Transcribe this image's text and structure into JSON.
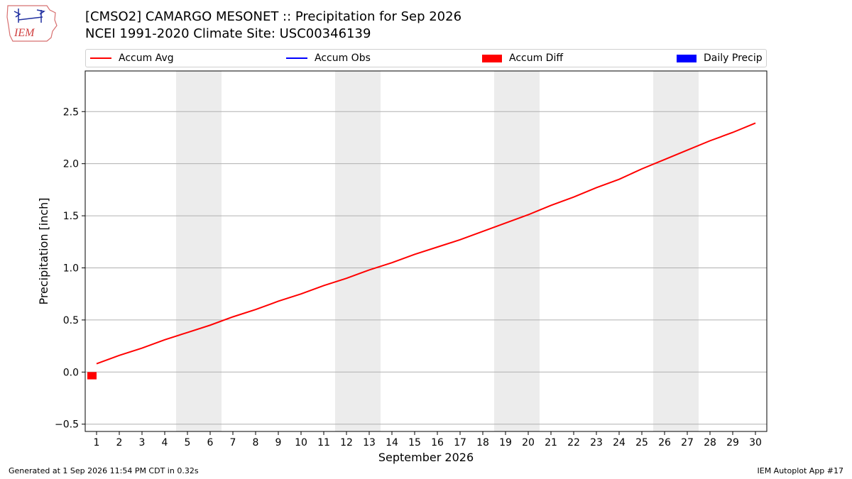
{
  "header": {
    "logo_text": "IEM",
    "title_line1": "[CMSO2] CAMARGO MESONET :: Precipitation for Sep 2026",
    "title_line2": "NCEI 1991-2020 Climate Site: USC00346139"
  },
  "legend": [
    {
      "label": "Accum Avg",
      "kind": "line",
      "color": "#ff0000"
    },
    {
      "label": "Accum Obs",
      "kind": "line",
      "color": "#0000ff"
    },
    {
      "label": "Accum Diff",
      "kind": "patch",
      "color": "#ff0000"
    },
    {
      "label": "Daily Precip",
      "kind": "patch",
      "color": "#0000ff"
    }
  ],
  "chart_data": {
    "type": "line",
    "xlabel": "September 2026",
    "ylabel": "Precipitation [inch]",
    "x": [
      1,
      2,
      3,
      4,
      5,
      6,
      7,
      8,
      9,
      10,
      11,
      12,
      13,
      14,
      15,
      16,
      17,
      18,
      19,
      20,
      21,
      22,
      23,
      24,
      25,
      26,
      27,
      28,
      29,
      30
    ],
    "xlim": [
      0.5,
      30.5
    ],
    "ylim": [
      -0.57,
      2.89
    ],
    "yticks": [
      -0.5,
      0.0,
      0.5,
      1.0,
      1.5,
      2.0,
      2.5
    ],
    "ytick_labels": [
      "−0.5",
      "0.0",
      "0.5",
      "1.0",
      "1.5",
      "2.0",
      "2.5"
    ],
    "grid": "y",
    "weekend_shading": [
      [
        4.5,
        6.5
      ],
      [
        11.5,
        13.5
      ],
      [
        18.5,
        20.5
      ],
      [
        25.5,
        27.5
      ]
    ],
    "shade_color": "#ececec",
    "series": [
      {
        "name": "Accum Avg",
        "color": "#ff0000",
        "values": [
          0.08,
          0.16,
          0.23,
          0.31,
          0.38,
          0.45,
          0.53,
          0.6,
          0.68,
          0.75,
          0.83,
          0.9,
          0.98,
          1.05,
          1.13,
          1.2,
          1.27,
          1.35,
          1.43,
          1.51,
          1.6,
          1.68,
          1.77,
          1.85,
          1.95,
          2.04,
          2.13,
          2.22,
          2.3,
          2.39
        ]
      },
      {
        "name": "Accum Diff",
        "kind": "bar",
        "color": "#ff0000",
        "x": [
          1
        ],
        "values": [
          -0.07
        ]
      }
    ]
  },
  "footer": {
    "left": "Generated at 1 Sep 2026 11:54 PM CDT in 0.32s",
    "right": "IEM Autoplot App #17"
  }
}
